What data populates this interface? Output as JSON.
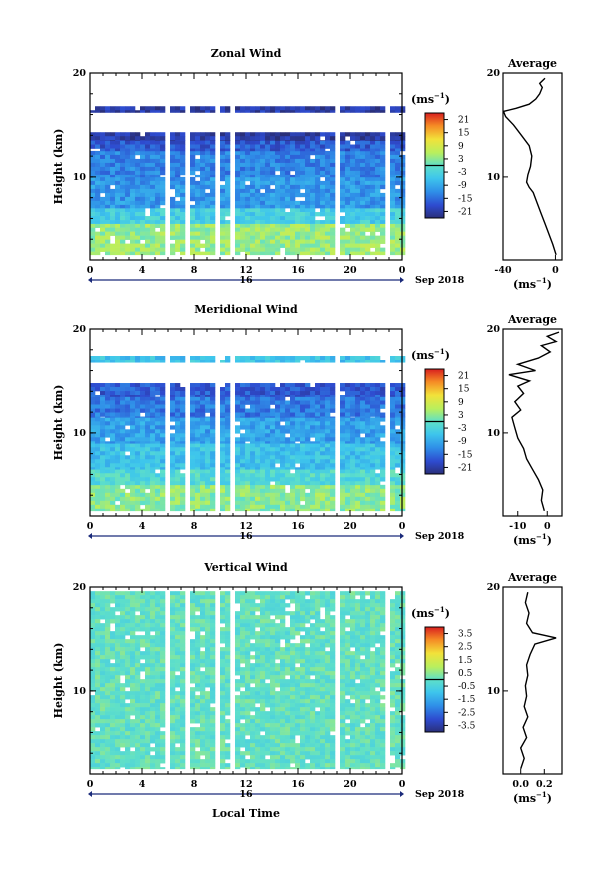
{
  "chart_data": [
    {
      "type": "heatmap",
      "title": "Zonal Wind",
      "ylabel": "Height (km)",
      "ylim": [
        2,
        20
      ],
      "yticks": [
        "20",
        "10"
      ],
      "xlim": [
        0,
        24
      ],
      "xticks": [
        "0",
        "4",
        "8",
        "12",
        "16",
        "20",
        "0"
      ],
      "x_group_label": "16",
      "month_label": "Sep 2018",
      "colorbar": {
        "unit_label": "(ms",
        "unit_exp": "−1",
        "ticks": [
          "21",
          "15",
          "9",
          "3",
          "-3",
          "-9",
          "-15",
          "-21"
        ],
        "range": [
          -24,
          24
        ]
      },
      "layers": [
        {
          "z0": 2.5,
          "z1": 5.5,
          "v": 4
        },
        {
          "z0": 5.5,
          "z1": 7.0,
          "v": -4
        },
        {
          "z0": 7.0,
          "z1": 10.0,
          "v": -11
        },
        {
          "z0": 10.0,
          "z1": 12.5,
          "v": -13
        },
        {
          "z0": 12.5,
          "z1": 13.5,
          "v": -17
        },
        {
          "z0": 13.5,
          "z1": 14.3,
          "v": -21
        },
        {
          "z0": 16.2,
          "z1": 16.8,
          "v": -21
        }
      ],
      "gaps_hours": [
        [
          5.7,
          6.1
        ],
        [
          7.0,
          7.4
        ],
        [
          9.3,
          9.7
        ],
        [
          10.6,
          11.1
        ],
        [
          17.7,
          18.0
        ],
        [
          18.7,
          19.0
        ],
        [
          22.6,
          22.9
        ]
      ],
      "profile": {
        "title": "Average",
        "xlim": [
          -40,
          5
        ],
        "xticks": [
          "-40",
          "0"
        ],
        "xlabel": "(ms",
        "xlabel_exp": "−1",
        "yticks": [
          "20",
          "10"
        ],
        "points": [
          [
            0.5,
            2.5
          ],
          [
            -2,
            3.5
          ],
          [
            -5,
            4.5
          ],
          [
            -8,
            5.5
          ],
          [
            -11,
            6.5
          ],
          [
            -14,
            7.5
          ],
          [
            -17,
            8.5
          ],
          [
            -20,
            9.0
          ],
          [
            -22,
            9.5
          ],
          [
            -21,
            10.2
          ],
          [
            -19,
            11.0
          ],
          [
            -18,
            12.0
          ],
          [
            -20,
            13.0
          ],
          [
            -26,
            14.0
          ],
          [
            -32,
            15.0
          ],
          [
            -38,
            15.8
          ],
          [
            -42,
            16.3
          ],
          [
            -30,
            16.6
          ],
          [
            -20,
            17.0
          ],
          [
            -15,
            17.5
          ],
          [
            -12,
            18.0
          ],
          [
            -10,
            18.6
          ],
          [
            -12,
            19.0
          ],
          [
            -8,
            19.5
          ]
        ]
      }
    },
    {
      "type": "heatmap",
      "title": "Meridional Wind",
      "ylabel": "Height (km)",
      "ylim": [
        2,
        20
      ],
      "yticks": [
        "20",
        "10"
      ],
      "xlim": [
        0,
        24
      ],
      "xticks": [
        "0",
        "4",
        "8",
        "12",
        "16",
        "20",
        "0"
      ],
      "x_group_label": "16",
      "month_label": "Sep 2018",
      "colorbar": {
        "unit_label": "(ms",
        "unit_exp": "−1",
        "ticks": [
          "21",
          "15",
          "9",
          "3",
          "-3",
          "-9",
          "-15",
          "-21"
        ],
        "range": [
          -24,
          24
        ]
      },
      "layers": [
        {
          "z0": 2.5,
          "z1": 5.0,
          "v": 3
        },
        {
          "z0": 5.0,
          "z1": 6.5,
          "v": -2
        },
        {
          "z0": 6.5,
          "z1": 9.0,
          "v": -6
        },
        {
          "z0": 9.0,
          "z1": 11.5,
          "v": -10
        },
        {
          "z0": 11.5,
          "z1": 13.5,
          "v": -14
        },
        {
          "z0": 13.5,
          "z1": 14.8,
          "v": -17
        },
        {
          "z0": 16.8,
          "z1": 17.4,
          "v": -6
        }
      ],
      "gaps_hours": [
        [
          5.7,
          6.1
        ],
        [
          7.0,
          7.4
        ],
        [
          9.3,
          9.7
        ],
        [
          10.6,
          11.1
        ],
        [
          17.7,
          18.0
        ],
        [
          18.7,
          19.0
        ],
        [
          22.6,
          22.9
        ]
      ],
      "profile": {
        "title": "Average",
        "xlim": [
          -15,
          5
        ],
        "xticks": [
          "-10",
          "0"
        ],
        "xlabel": "(ms",
        "xlabel_exp": "−1",
        "yticks": [
          "20",
          "10"
        ],
        "points": [
          [
            -1,
            2.5
          ],
          [
            -2,
            3.5
          ],
          [
            -1.5,
            4.5
          ],
          [
            -3,
            5.5
          ],
          [
            -5,
            6.5
          ],
          [
            -7,
            7.5
          ],
          [
            -8,
            8.5
          ],
          [
            -10,
            9.5
          ],
          [
            -11,
            10.5
          ],
          [
            -12,
            11.5
          ],
          [
            -9,
            12.2
          ],
          [
            -11,
            13.0
          ],
          [
            -8,
            13.8
          ],
          [
            -10,
            14.5
          ],
          [
            -6,
            15.0
          ],
          [
            -13,
            15.6
          ],
          [
            -4,
            16.0
          ],
          [
            -10,
            16.6
          ],
          [
            -3,
            17.2
          ],
          [
            1,
            17.8
          ],
          [
            -2,
            18.4
          ],
          [
            3,
            18.8
          ],
          [
            0,
            19.3
          ],
          [
            4,
            19.7
          ]
        ]
      }
    },
    {
      "type": "heatmap",
      "title": "Vertical Wind",
      "ylabel": "Height (km)",
      "ylim": [
        2,
        20
      ],
      "yticks": [
        "20",
        "10"
      ],
      "xlim": [
        0,
        24
      ],
      "xticks": [
        "0",
        "4",
        "8",
        "12",
        "16",
        "20",
        "0"
      ],
      "x_group_label": "16",
      "month_label": "Sep 2018",
      "xlabel": "Local Time",
      "colorbar": {
        "unit_label": "(ms",
        "unit_exp": "−1",
        "ticks": [
          "3.5",
          "2.5",
          "1.5",
          "0.5",
          "-0.5",
          "-1.5",
          "-2.5",
          "-3.5"
        ],
        "range": [
          -4,
          4
        ]
      },
      "layers": [
        {
          "z0": 2.5,
          "z1": 19.6,
          "v": 0.0
        }
      ],
      "gaps_hours": [
        [
          5.7,
          6.1
        ],
        [
          7.0,
          7.4
        ],
        [
          9.3,
          9.7
        ],
        [
          10.6,
          11.1
        ],
        [
          17.7,
          18.0
        ],
        [
          18.7,
          19.0
        ],
        [
          22.6,
          22.9
        ]
      ],
      "profile": {
        "title": "Average",
        "xlim": [
          -0.15,
          0.35
        ],
        "xticks": [
          "0.0",
          "0.2"
        ],
        "xlabel": "(ms",
        "xlabel_exp": "−1",
        "yticks": [
          "20",
          "10"
        ],
        "points": [
          [
            0.0,
            2.5
          ],
          [
            0.03,
            3.5
          ],
          [
            0.0,
            4.5
          ],
          [
            0.05,
            5.5
          ],
          [
            0.02,
            6.5
          ],
          [
            0.06,
            7.5
          ],
          [
            0.03,
            8.5
          ],
          [
            0.05,
            9.5
          ],
          [
            0.04,
            10.5
          ],
          [
            0.06,
            11.5
          ],
          [
            0.05,
            12.5
          ],
          [
            0.08,
            13.5
          ],
          [
            0.12,
            14.5
          ],
          [
            0.3,
            15.1
          ],
          [
            0.1,
            15.6
          ],
          [
            0.05,
            16.5
          ],
          [
            0.07,
            17.5
          ],
          [
            0.04,
            18.5
          ],
          [
            0.06,
            19.5
          ]
        ]
      }
    }
  ]
}
